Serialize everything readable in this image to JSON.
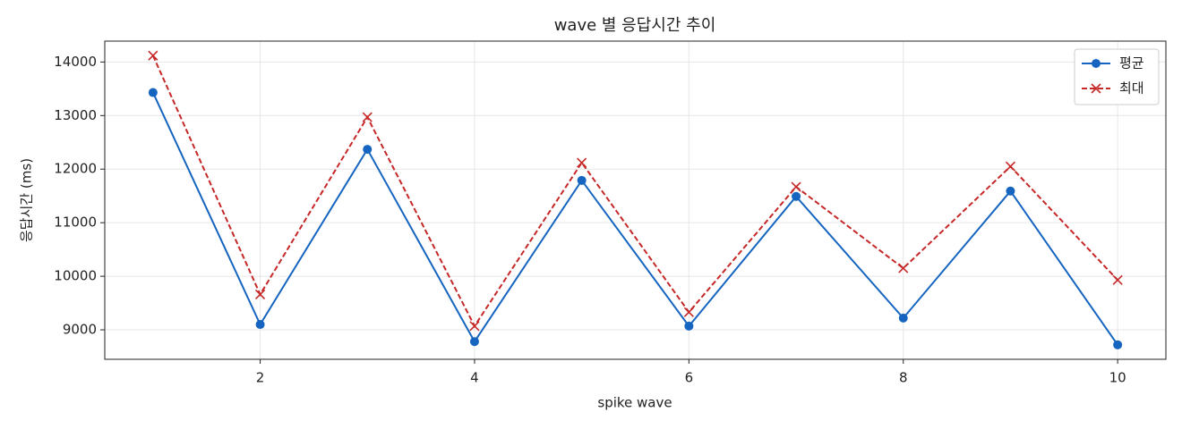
{
  "chart_data": {
    "type": "line",
    "title": "wave 별 응답시간 추이",
    "x_label": "spike wave",
    "y_label": "응답시간 (ms)",
    "x": [
      1,
      2,
      3,
      4,
      5,
      6,
      7,
      8,
      9,
      10
    ],
    "series": [
      {
        "name": "평균",
        "color": "#1565c0",
        "marker": "circle",
        "dash": false,
        "values": [
          13430,
          9100,
          12370,
          8780,
          11790,
          9070,
          11490,
          9220,
          11590,
          8720
        ]
      },
      {
        "name": "최대",
        "color": "#c62828",
        "marker": "x",
        "dash": true,
        "values": [
          14120,
          9660,
          12970,
          9070,
          12120,
          9330,
          11670,
          10150,
          12050,
          9930
        ]
      }
    ],
    "xlim": [
      0.55,
      10.45
    ],
    "xticks": [
      2,
      4,
      6,
      8,
      10
    ],
    "ylim": [
      8450,
      14390
    ],
    "yticks": [
      9000,
      10000,
      11000,
      12000,
      13000,
      14000
    ],
    "grid": true,
    "legend": "upper right"
  }
}
